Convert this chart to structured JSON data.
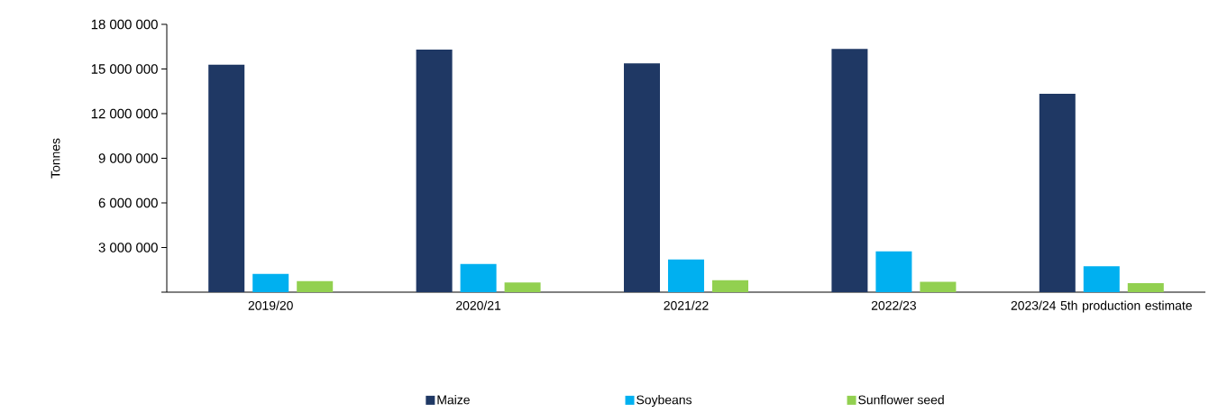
{
  "chart_data": {
    "type": "bar",
    "ylabel": "Tonnes",
    "categories": [
      "2019/20",
      "2020/21",
      "2021/22",
      "2022/23",
      "2023/24 5th production estimate"
    ],
    "series": [
      {
        "name": "Maize",
        "color": "#1f3864",
        "values": [
          15290000,
          16310000,
          15380000,
          16350000,
          13330000
        ]
      },
      {
        "name": "Soybeans",
        "color": "#00b0f0",
        "values": [
          1230000,
          1900000,
          2200000,
          2750000,
          1750000
        ]
      },
      {
        "name": "Sunflower seed",
        "color": "#92d050",
        "values": [
          740000,
          650000,
          800000,
          690000,
          610000
        ]
      }
    ],
    "ylim": [
      0,
      18000000
    ],
    "yticks": [
      {
        "value": 0,
        "label": null
      },
      {
        "value": 3000000,
        "label": "3 000 000"
      },
      {
        "value": 6000000,
        "label": "6 000 000"
      },
      {
        "value": 9000000,
        "label": "9 000 000"
      },
      {
        "value": 12000000,
        "label": "12 000 000"
      },
      {
        "value": 15000000,
        "label": "15 000 000"
      },
      {
        "value": 18000000,
        "label": "18 000 000"
      }
    ],
    "grid": false,
    "legend": "bottom"
  }
}
